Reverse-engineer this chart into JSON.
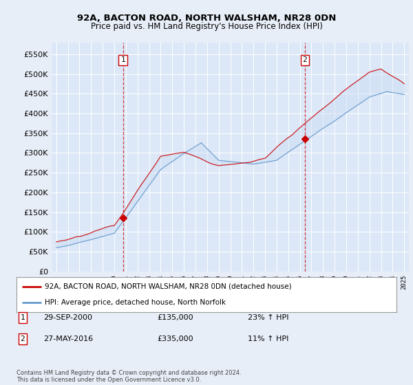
{
  "title1": "92A, BACTON ROAD, NORTH WALSHAM, NR28 0DN",
  "title2": "Price paid vs. HM Land Registry's House Price Index (HPI)",
  "background_color": "#e8eef8",
  "plot_bg": "#dce8f8",
  "grid_color": "#c8d8e8",
  "red_line_color": "#cc0000",
  "blue_line_color": "#6699cc",
  "fill_color": "#c5d8f0",
  "ylim": [
    0,
    580000
  ],
  "yticks": [
    0,
    50000,
    100000,
    150000,
    200000,
    250000,
    300000,
    350000,
    400000,
    450000,
    500000,
    550000
  ],
  "sale1_x": 2000.75,
  "sale1_y": 135000,
  "sale1_label": "1",
  "sale2_x": 2016.42,
  "sale2_y": 335000,
  "sale2_label": "2",
  "legend_line1": "92A, BACTON ROAD, NORTH WALSHAM, NR28 0DN (detached house)",
  "legend_line2": "HPI: Average price, detached house, North Norfolk",
  "info1_num": "1",
  "info1_date": "29-SEP-2000",
  "info1_price": "£135,000",
  "info1_hpi": "23% ↑ HPI",
  "info2_num": "2",
  "info2_date": "27-MAY-2016",
  "info2_price": "£335,000",
  "info2_hpi": "11% ↑ HPI",
  "footer": "Contains HM Land Registry data © Crown copyright and database right 2024.\nThis data is licensed under the Open Government Licence v3.0.",
  "xmin": 1994.6,
  "xmax": 2025.4
}
